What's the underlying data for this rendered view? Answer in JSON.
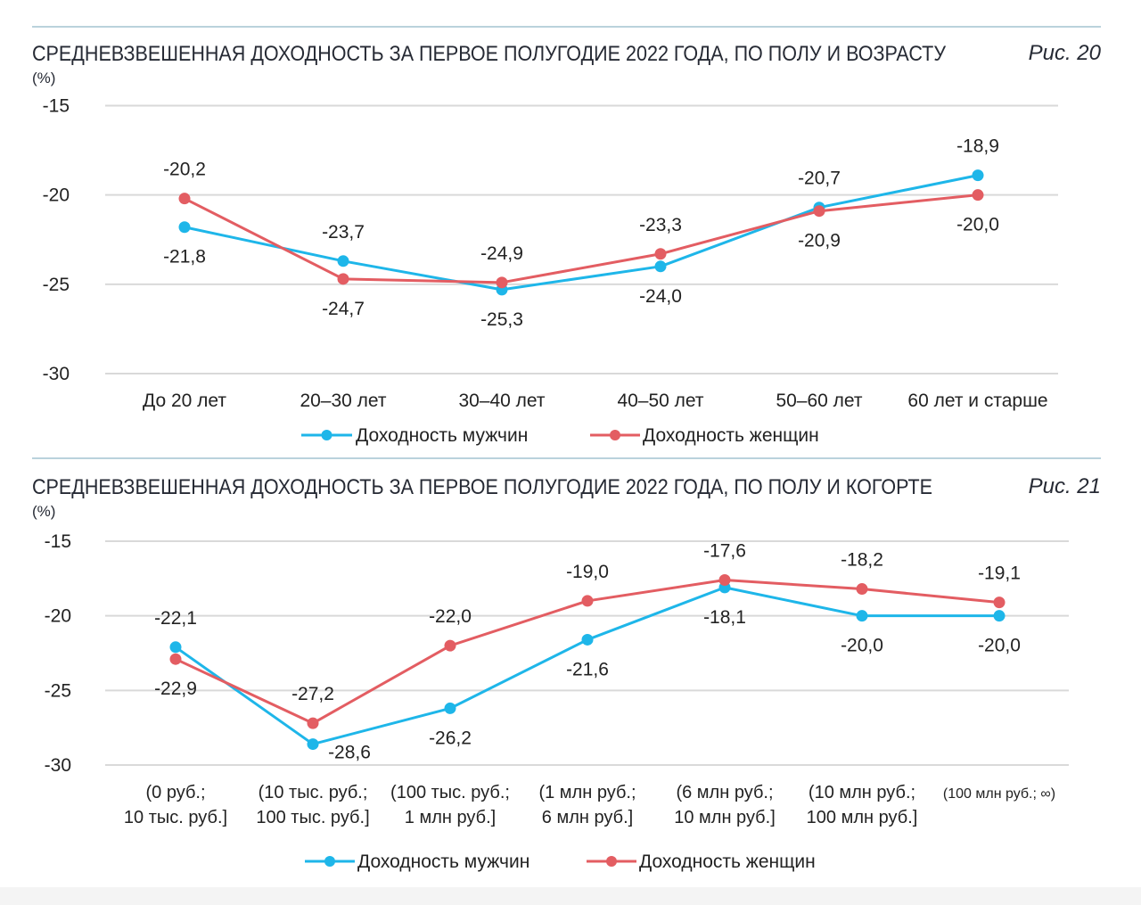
{
  "chart_data": [
    {
      "type": "line",
      "title": "СРЕДНЕВЗВЕШЕННАЯ ДОХОДНОСТЬ ЗА ПЕРВОЕ ПОЛУГОДИЕ 2022 ГОДА, ПО ПОЛУ И ВОЗРАСТУ",
      "figure_label": "Рис. 20",
      "ylabel": "(%)",
      "ylim": [
        -30,
        -15
      ],
      "yticks": [
        -15,
        -20,
        -25,
        -30
      ],
      "grid": true,
      "categories": [
        [
          "До 20 лет"
        ],
        [
          "20–30 лет"
        ],
        [
          "30–40 лет"
        ],
        [
          "40–50 лет"
        ],
        [
          "50–60 лет"
        ],
        [
          "60 лет и старше"
        ]
      ],
      "series": [
        {
          "name": "Доходность мужчин",
          "color": "#1eb6e9",
          "values": [
            -21.8,
            -23.7,
            -25.3,
            -24.0,
            -20.7,
            -18.9
          ]
        },
        {
          "name": "Доходность женщин",
          "color": "#e35d62",
          "values": [
            -20.2,
            -24.7,
            -24.9,
            -23.3,
            -20.9,
            -20.0
          ]
        }
      ]
    },
    {
      "type": "line",
      "title": "СРЕДНЕВЗВЕШЕННАЯ ДОХОДНОСТЬ ЗА ПЕРВОЕ ПОЛУГОДИЕ 2022 ГОДА, ПО ПОЛУ И КОГОРТЕ",
      "figure_label": "Рис. 21",
      "ylabel": "(%)",
      "ylim": [
        -30,
        -15
      ],
      "yticks": [
        -15,
        -20,
        -25,
        -30
      ],
      "grid": true,
      "categories": [
        [
          "(0 руб.;",
          "10 тыс. руб.]"
        ],
        [
          "(10 тыс. руб.;",
          "100 тыс. руб.]"
        ],
        [
          "(100 тыс. руб.;",
          "1 млн руб.]"
        ],
        [
          "(1 млн руб.;",
          "6 млн руб.]"
        ],
        [
          "(6 млн руб.;",
          "10 млн руб.]"
        ],
        [
          "(10 млн руб.;",
          "100 млн руб.]"
        ],
        [
          "(100 млн руб.; ∞)"
        ]
      ],
      "series": [
        {
          "name": "Доходность мужчин",
          "color": "#1eb6e9",
          "values": [
            -22.1,
            -28.6,
            -26.2,
            -21.6,
            -18.1,
            -20.0,
            -20.0
          ]
        },
        {
          "name": "Доходность женщин",
          "color": "#e35d62",
          "values": [
            -22.9,
            -27.2,
            -22.0,
            -19.0,
            -17.6,
            -18.2,
            -19.1
          ]
        }
      ]
    }
  ]
}
